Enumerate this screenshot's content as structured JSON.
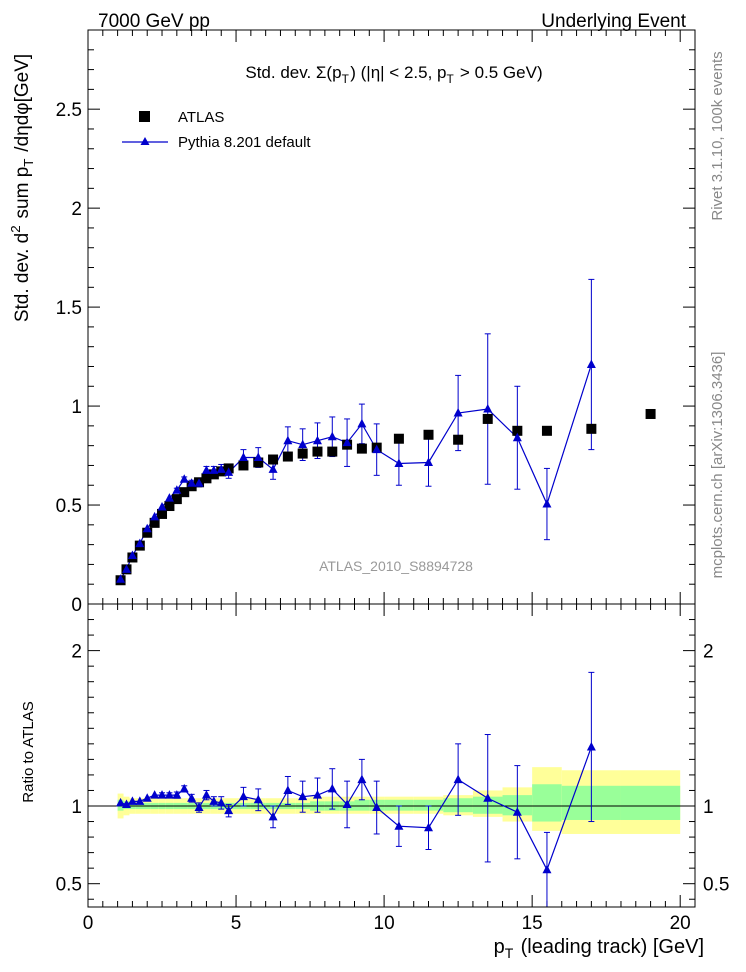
{
  "header": {
    "left": "7000 GeV pp",
    "right": "Underlying Event"
  },
  "side_text": {
    "top": "Rivet 3.1.10,  100k events",
    "bottom": "mcplots.cern.ch [arXiv:1306.3436]"
  },
  "chart_data": [
    {
      "type": "scatter",
      "title": "Std. dev. Σ(p_T) (|η| < 2.5, p_T > 0.5 GeV)",
      "ylabel": "Std. dev. d² sum p_T /dηdφ[GeV]",
      "xlim": [
        0,
        20.5
      ],
      "ylim": [
        0,
        2.9
      ],
      "yticks": [
        0,
        0.5,
        1,
        1.5,
        2,
        2.5
      ],
      "yticklabels": [
        "0",
        "0.5",
        "1",
        "1.5",
        "2",
        "2.5"
      ],
      "watermark": "ATLAS_2010_S8894728",
      "legend": {
        "placement": "top-left"
      },
      "series": [
        {
          "name": "ATLAS",
          "style": "black-squares",
          "color": "#000000",
          "x": [
            1.1,
            1.3,
            1.5,
            1.75,
            2.0,
            2.25,
            2.5,
            2.75,
            3.0,
            3.25,
            3.5,
            3.75,
            4.0,
            4.25,
            4.5,
            4.75,
            5.25,
            5.75,
            6.25,
            6.75,
            7.25,
            7.75,
            8.25,
            8.75,
            9.25,
            9.75,
            10.5,
            11.5,
            12.5,
            13.5,
            14.5,
            15.5,
            17.0,
            19.0
          ],
          "y": [
            0.12,
            0.175,
            0.235,
            0.295,
            0.36,
            0.41,
            0.455,
            0.495,
            0.53,
            0.565,
            0.595,
            0.615,
            0.635,
            0.655,
            0.67,
            0.685,
            0.7,
            0.715,
            0.73,
            0.745,
            0.76,
            0.77,
            0.77,
            0.805,
            0.785,
            0.79,
            0.835,
            0.855,
            0.83,
            0.935,
            0.875,
            0.875,
            0.885,
            0.96
          ]
        },
        {
          "name": "Pythia 8.201 default",
          "style": "blue-triangles-line",
          "color": "#0000cc",
          "x": [
            1.1,
            1.3,
            1.5,
            1.75,
            2.0,
            2.25,
            2.5,
            2.75,
            3.0,
            3.25,
            3.5,
            3.75,
            4.0,
            4.25,
            4.5,
            4.75,
            5.25,
            5.75,
            6.25,
            6.75,
            7.25,
            7.75,
            8.25,
            8.75,
            9.25,
            9.75,
            10.5,
            11.5,
            12.5,
            13.5,
            14.5,
            15.5,
            17.0
          ],
          "y": [
            0.125,
            0.175,
            0.245,
            0.305,
            0.38,
            0.44,
            0.49,
            0.535,
            0.575,
            0.63,
            0.61,
            0.61,
            0.675,
            0.675,
            0.68,
            0.665,
            0.74,
            0.74,
            0.68,
            0.825,
            0.805,
            0.825,
            0.845,
            0.815,
            0.91,
            0.78,
            0.71,
            0.715,
            0.965,
            0.985,
            0.84,
            0.505,
            1.21
          ],
          "yerr": [
            0.005,
            0.005,
            0.005,
            0.005,
            0.005,
            0.006,
            0.006,
            0.007,
            0.01,
            0.012,
            0.015,
            0.018,
            0.02,
            0.02,
            0.025,
            0.03,
            0.04,
            0.05,
            0.05,
            0.07,
            0.08,
            0.09,
            0.1,
            0.12,
            0.1,
            0.13,
            0.11,
            0.12,
            0.19,
            0.38,
            0.26,
            0.18,
            0.43
          ]
        }
      ]
    },
    {
      "type": "scatter",
      "ylabel": "Ratio to ATLAS",
      "xlabel": "p_T (leading track) [GeV]",
      "xlim": [
        0,
        20.5
      ],
      "ylim": [
        0.35,
        2.3
      ],
      "yticks": [
        0.5,
        1,
        2
      ],
      "yticklabels": [
        "0.5",
        "1",
        "2"
      ],
      "xticks": [
        0,
        5,
        10,
        15,
        20
      ],
      "xticklabels": [
        "0",
        "5",
        "10",
        "15",
        "20"
      ],
      "bands": {
        "edges": [
          1.0,
          1.2,
          1.4,
          1.6,
          1.875,
          2.125,
          2.375,
          2.625,
          2.875,
          3.125,
          3.375,
          3.625,
          3.875,
          4.125,
          4.375,
          4.625,
          5.0,
          5.5,
          6.0,
          6.5,
          7.0,
          7.5,
          8.0,
          8.5,
          9.0,
          9.5,
          10.0,
          11.0,
          12.0,
          13.0,
          14.0,
          15.0,
          16.0,
          18.0,
          20.0
        ],
        "yellow": [
          [
            0.92,
            1.08
          ],
          [
            0.94,
            1.06
          ],
          [
            0.95,
            1.05
          ],
          [
            0.95,
            1.05
          ],
          [
            0.95,
            1.05
          ],
          [
            0.95,
            1.05
          ],
          [
            0.95,
            1.05
          ],
          [
            0.95,
            1.05
          ],
          [
            0.95,
            1.05
          ],
          [
            0.95,
            1.05
          ],
          [
            0.95,
            1.05
          ],
          [
            0.95,
            1.05
          ],
          [
            0.95,
            1.05
          ],
          [
            0.95,
            1.05
          ],
          [
            0.95,
            1.05
          ],
          [
            0.95,
            1.05
          ],
          [
            0.95,
            1.05
          ],
          [
            0.95,
            1.05
          ],
          [
            0.95,
            1.05
          ],
          [
            0.95,
            1.05
          ],
          [
            0.95,
            1.05
          ],
          [
            0.95,
            1.06
          ],
          [
            0.95,
            1.06
          ],
          [
            0.95,
            1.06
          ],
          [
            0.95,
            1.06
          ],
          [
            0.95,
            1.06
          ],
          [
            0.95,
            1.06
          ],
          [
            0.95,
            1.06
          ],
          [
            0.94,
            1.07
          ],
          [
            0.93,
            1.1
          ],
          [
            0.9,
            1.12
          ],
          [
            0.84,
            1.25
          ],
          [
            0.82,
            1.23
          ],
          [
            0.82,
            1.23
          ]
        ],
        "green": [
          [
            0.97,
            1.04
          ],
          [
            0.98,
            1.03
          ],
          [
            0.98,
            1.02
          ],
          [
            0.98,
            1.02
          ],
          [
            0.98,
            1.02
          ],
          [
            0.98,
            1.02
          ],
          [
            0.98,
            1.02
          ],
          [
            0.98,
            1.02
          ],
          [
            0.98,
            1.02
          ],
          [
            0.98,
            1.02
          ],
          [
            0.98,
            1.02
          ],
          [
            0.98,
            1.02
          ],
          [
            0.98,
            1.02
          ],
          [
            0.98,
            1.02
          ],
          [
            0.98,
            1.02
          ],
          [
            0.98,
            1.02
          ],
          [
            0.98,
            1.02
          ],
          [
            0.98,
            1.02
          ],
          [
            0.98,
            1.02
          ],
          [
            0.98,
            1.02
          ],
          [
            0.98,
            1.02
          ],
          [
            0.97,
            1.03
          ],
          [
            0.97,
            1.03
          ],
          [
            0.97,
            1.03
          ],
          [
            0.97,
            1.04
          ],
          [
            0.97,
            1.04
          ],
          [
            0.97,
            1.04
          ],
          [
            0.97,
            1.04
          ],
          [
            0.96,
            1.05
          ],
          [
            0.95,
            1.06
          ],
          [
            0.94,
            1.07
          ],
          [
            0.9,
            1.14
          ],
          [
            0.91,
            1.13
          ],
          [
            0.91,
            1.13
          ]
        ]
      },
      "series": [
        {
          "name": "Pythia 8.201 default",
          "color": "#0000cc",
          "x": [
            1.1,
            1.3,
            1.5,
            1.75,
            2.0,
            2.25,
            2.5,
            2.75,
            3.0,
            3.25,
            3.5,
            3.75,
            4.0,
            4.25,
            4.5,
            4.75,
            5.25,
            5.75,
            6.25,
            6.75,
            7.25,
            7.75,
            8.25,
            8.75,
            9.25,
            9.75,
            10.5,
            11.5,
            12.5,
            13.5,
            14.5,
            15.5,
            17.0
          ],
          "y": [
            1.02,
            1.01,
            1.03,
            1.03,
            1.05,
            1.07,
            1.07,
            1.07,
            1.07,
            1.11,
            1.05,
            0.99,
            1.07,
            1.03,
            1.02,
            0.97,
            1.06,
            1.04,
            0.93,
            1.1,
            1.06,
            1.07,
            1.11,
            1.01,
            1.17,
            0.99,
            0.87,
            0.86,
            1.17,
            1.05,
            0.96,
            0.59,
            1.38
          ],
          "yerr": [
            0.01,
            0.01,
            0.01,
            0.01,
            0.01,
            0.01,
            0.015,
            0.015,
            0.02,
            0.02,
            0.025,
            0.03,
            0.03,
            0.03,
            0.04,
            0.04,
            0.06,
            0.07,
            0.07,
            0.09,
            0.1,
            0.11,
            0.13,
            0.15,
            0.13,
            0.17,
            0.13,
            0.14,
            0.23,
            0.41,
            0.3,
            0.24,
            0.48
          ]
        }
      ]
    }
  ]
}
